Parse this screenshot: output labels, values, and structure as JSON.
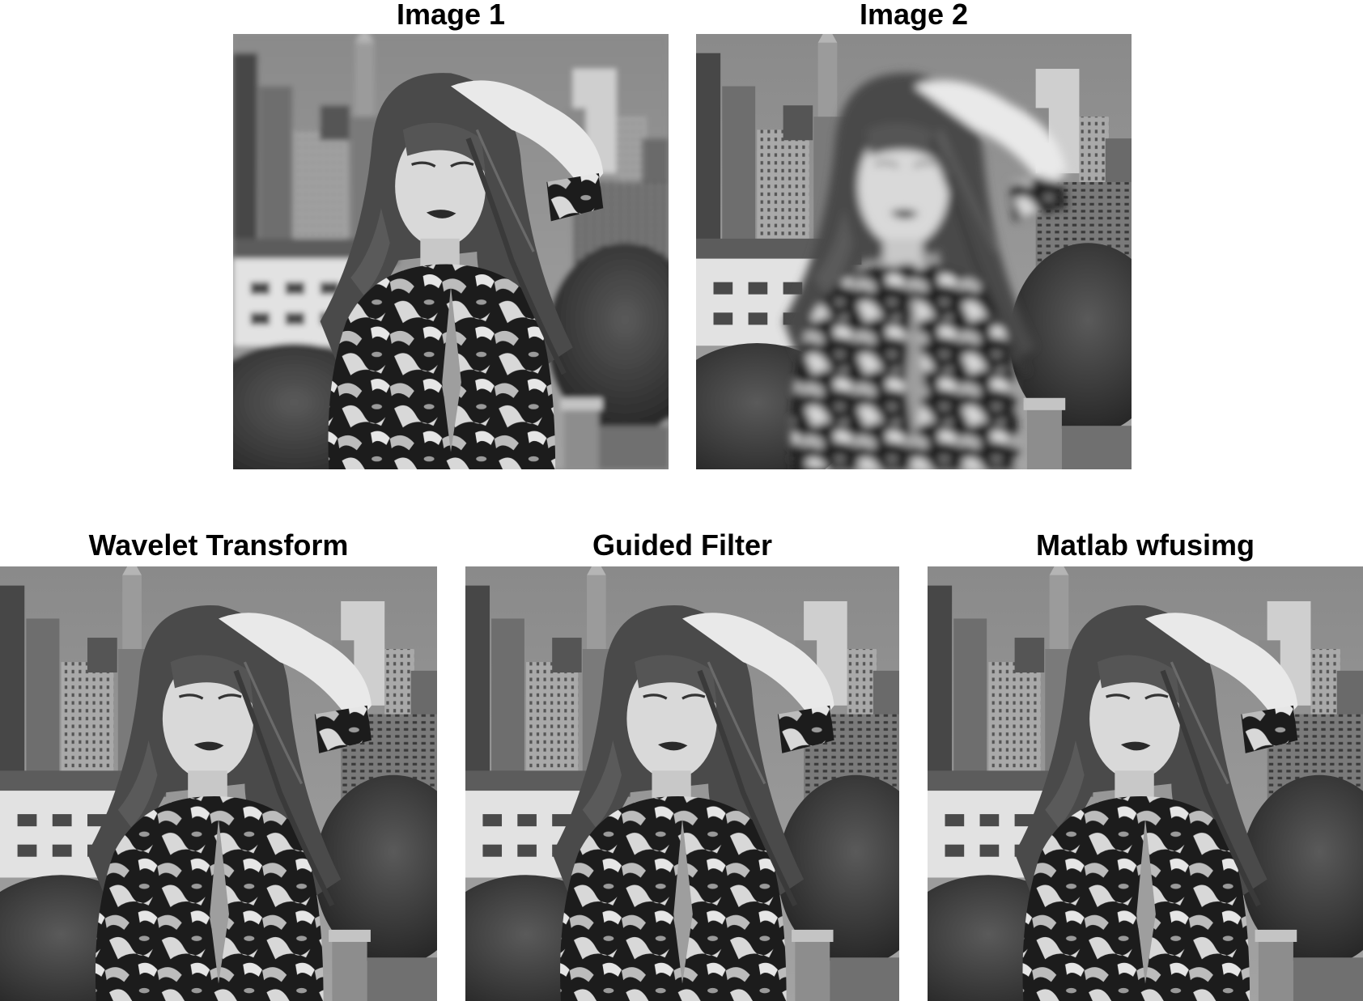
{
  "panels": [
    {
      "id": "p1",
      "title": "Image 1",
      "focus": "foreground"
    },
    {
      "id": "p2",
      "title": "Image 2",
      "focus": "background"
    },
    {
      "id": "p3",
      "title": "Wavelet Transform",
      "focus": "both"
    },
    {
      "id": "p4",
      "title": "Guided Filter",
      "focus": "both"
    },
    {
      "id": "p5",
      "title": "Matlab wfusimg",
      "focus": "both"
    }
  ],
  "colors": {
    "background": "#ffffff",
    "title": "#000000"
  }
}
